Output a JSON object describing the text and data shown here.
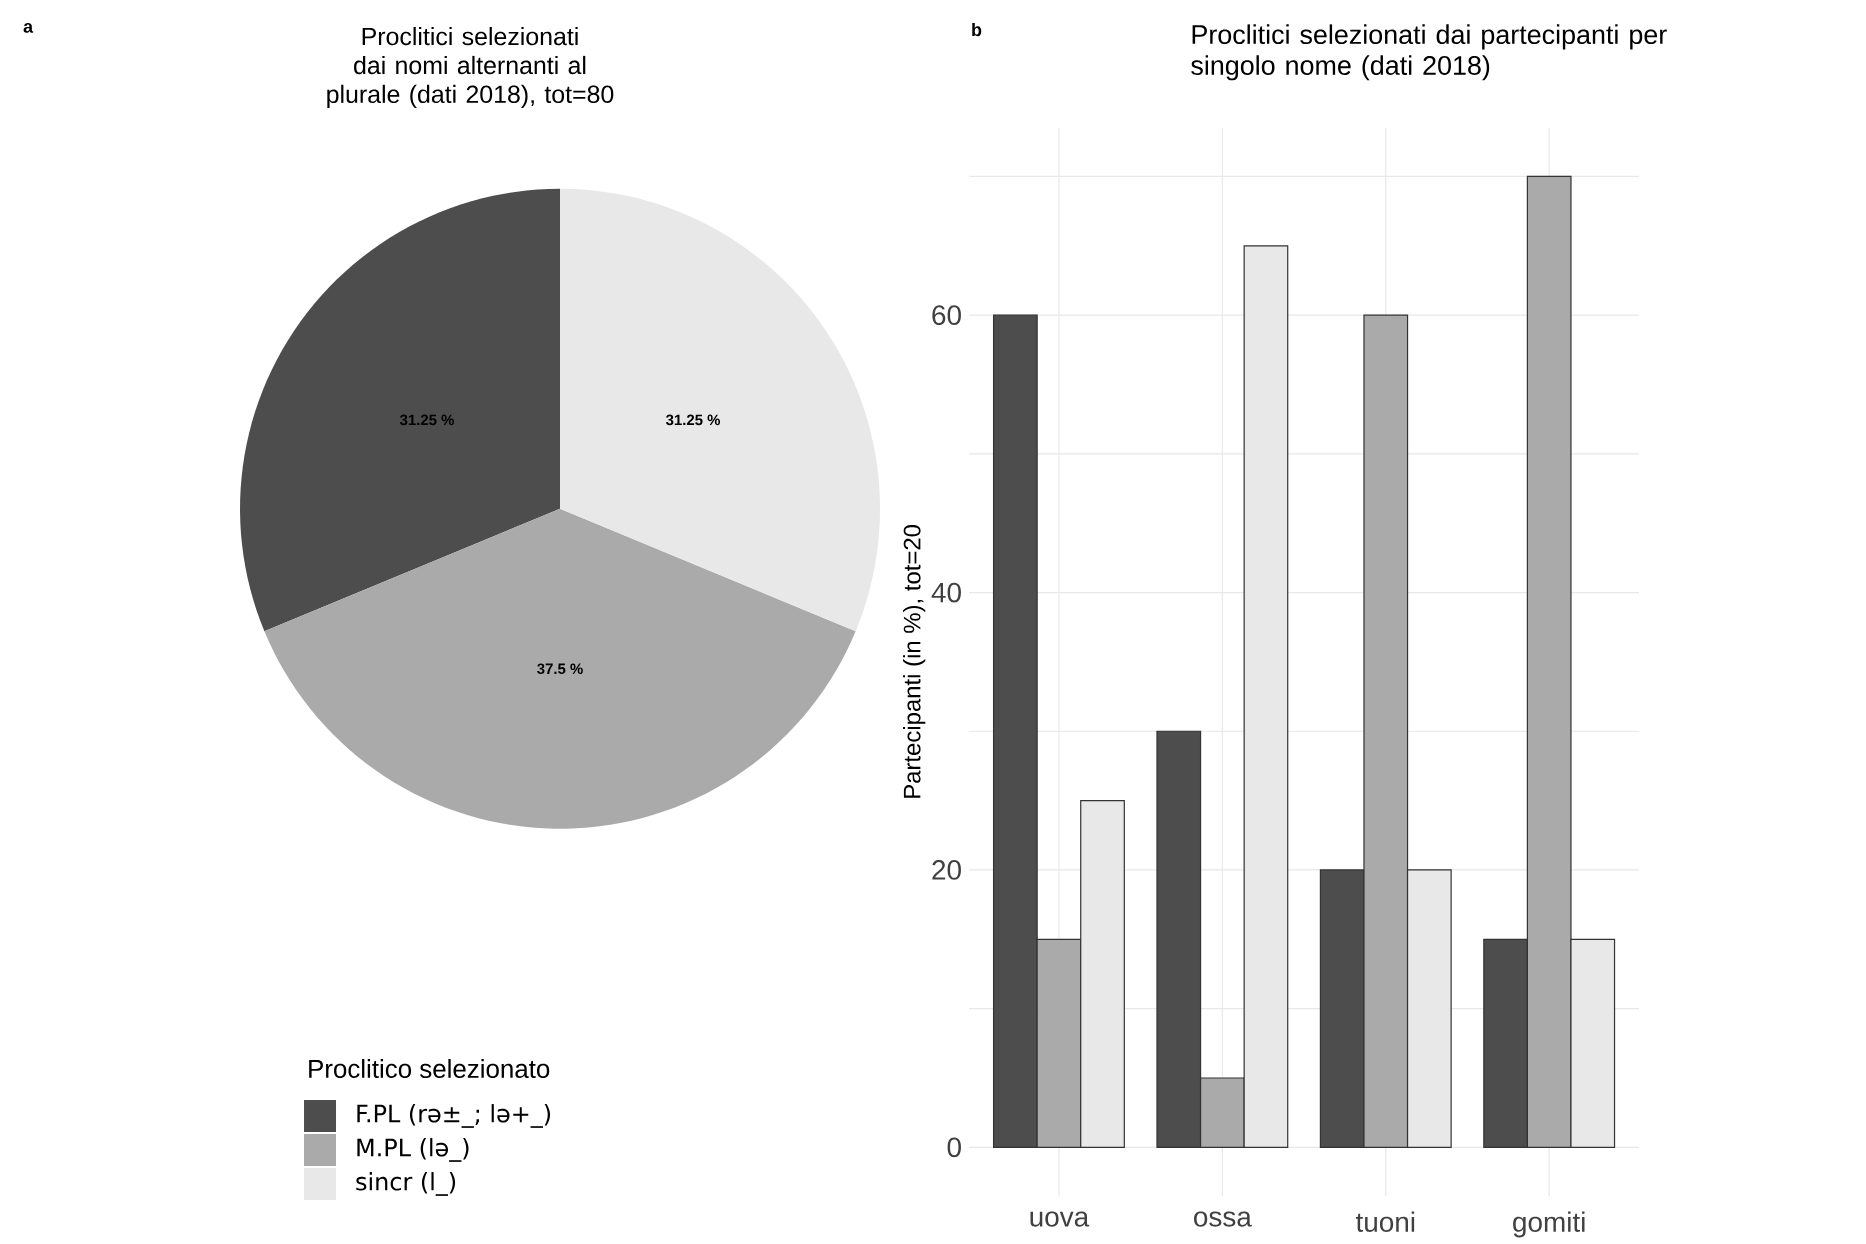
{
  "chart_data": [
    {
      "type": "pie",
      "annotations": [
        "a"
      ],
      "title": "Proclitici selezionati",
      "subtitle": "dai nomi alternanti al plurale (dati 2018), tot=80",
      "categories": [
        "F.PL (rə±_; lə+_)",
        "M.PL (lə_)",
        "sincr (l_)"
      ],
      "values": [
        31.25,
        37.5,
        31.25
      ],
      "colors": [
        "#4d4d4d",
        "#aaaaaa",
        "#e8e8e8"
      ],
      "value_labels": [
        "31.25 %",
        "37.5 %",
        "31.25 %"
      ],
      "legend": "bottom",
      "legend_title": "Proclitico selezionato"
    },
    {
      "type": "bar",
      "annotations": [
        "b"
      ],
      "title": "Proclitici selezionati dai partecipanti per singolo nome (dati 2018)",
      "ylabel": "Partecipanti (in %), tot=20",
      "categories": [
        "uova",
        "ossa",
        "tuoni",
        "gomiti"
      ],
      "series": [
        {
          "color": "#4d4d4d",
          "values": [
            60,
            30,
            20,
            15
          ]
        },
        {
          "color": "#aaaaaa",
          "values": [
            15,
            5,
            60,
            70
          ]
        },
        {
          "color": "#e8e8e8",
          "values": [
            25,
            65,
            20,
            15
          ]
        }
      ],
      "ylim": [
        -3.5,
        73.5
      ],
      "yticks": [
        0,
        {
          "value": 10,
          "label": null
        },
        20,
        {
          "value": 30,
          "label": null
        },
        40,
        {
          "value": 50,
          "label": null
        },
        60,
        {
          "value": 70,
          "label": null
        }
      ],
      "grid": true
    }
  ]
}
